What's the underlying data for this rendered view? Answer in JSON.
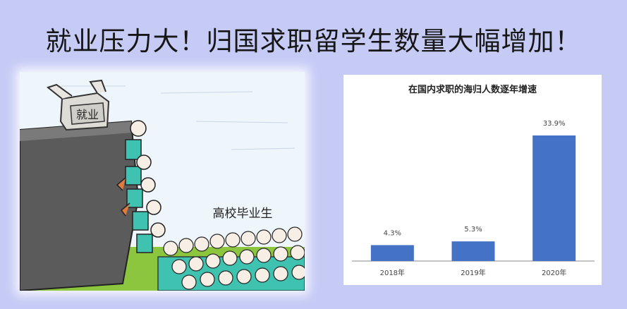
{
  "slide": {
    "title": "就业压力大！归国求职留学生数量大幅增加！"
  },
  "cartoon": {
    "sign_text": "就业",
    "crowd_label": "高校毕业生"
  },
  "chart_data": {
    "type": "bar",
    "title": "在国内求职的海归人数逐年增速",
    "categories": [
      "2018年",
      "2019年",
      "2020年"
    ],
    "values": [
      4.3,
      5.3,
      33.9
    ],
    "value_labels": [
      "4.3%",
      "5.3%",
      "33.9%"
    ],
    "ylim": [
      0,
      40
    ],
    "xlabel": "",
    "ylabel": "",
    "grid": false,
    "bar_color": "#4472c4"
  }
}
